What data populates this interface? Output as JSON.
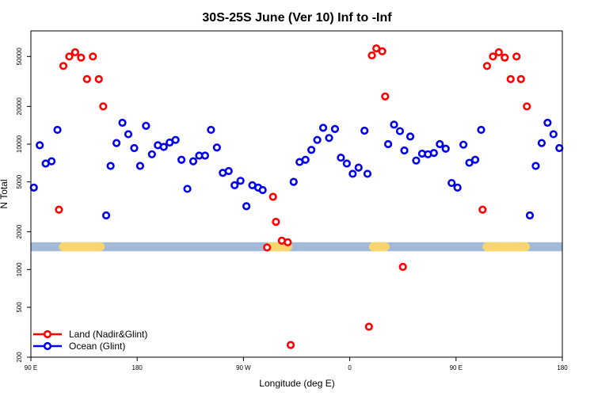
{
  "chart_data": {
    "type": "scatter",
    "title": "30S-25S June (Ver 10)   Inf to -Inf",
    "xlabel": "Longitude (deg E)",
    "ylabel": "N Total",
    "y_scale": "log",
    "xlim": [
      0,
      360
    ],
    "ylim": [
      200,
      80000
    ],
    "x_ticks": [
      {
        "value": 0,
        "label": "90 E"
      },
      {
        "value": 72,
        "label": "180"
      },
      {
        "value": 144,
        "label": "90 W"
      },
      {
        "value": 216,
        "label": "0"
      },
      {
        "value": 288,
        "label": "90 E"
      },
      {
        "value": 360,
        "label": "180"
      }
    ],
    "y_ticks": [
      {
        "value": 200,
        "label": "200"
      },
      {
        "value": 500,
        "label": "500"
      },
      {
        "value": 1000,
        "label": "1000"
      },
      {
        "value": 2000,
        "label": "2000"
      },
      {
        "value": 5000,
        "label": "5000"
      },
      {
        "value": 10000,
        "label": "10000"
      },
      {
        "value": 20000,
        "label": "20000"
      },
      {
        "value": 50000,
        "label": "50000"
      }
    ],
    "reference_band": {
      "y_range": [
        1400,
        1650
      ],
      "color": "#a3b9d8",
      "land_color": "#f8d56e",
      "land_segments": [
        [
          19,
          50
        ],
        [
          159,
          177
        ],
        [
          229,
          243
        ],
        [
          306,
          338
        ]
      ]
    },
    "legend": {
      "position": "bottom-left"
    },
    "series": [
      {
        "name": "Land (Nadir&Glint)",
        "color": "#ff0000",
        "points": [
          [
            19,
            3000
          ],
          [
            22,
            42000
          ],
          [
            26,
            50000
          ],
          [
            30,
            54000
          ],
          [
            34,
            49000
          ],
          [
            38,
            33000
          ],
          [
            42,
            50000
          ],
          [
            46,
            33000
          ],
          [
            49,
            20000
          ],
          [
            160,
            1500
          ],
          [
            164,
            3800
          ],
          [
            166,
            2400
          ],
          [
            170,
            1700
          ],
          [
            174,
            1650
          ],
          [
            176,
            250
          ],
          [
            229,
            350
          ],
          [
            231,
            51000
          ],
          [
            234,
            58000
          ],
          [
            238,
            55000
          ],
          [
            240,
            24000
          ],
          [
            252,
            1050
          ],
          [
            306,
            3000
          ],
          [
            309,
            42000
          ],
          [
            313,
            50000
          ],
          [
            317,
            54000
          ],
          [
            321,
            49000
          ],
          [
            325,
            33000
          ],
          [
            329,
            50000
          ],
          [
            332,
            33000
          ],
          [
            336,
            20000
          ]
        ]
      },
      {
        "name": "Ocean (Glint)",
        "color": "#0000ee",
        "points": [
          [
            2,
            4500
          ],
          [
            6,
            9800
          ],
          [
            10,
            7000
          ],
          [
            14,
            7300
          ],
          [
            18,
            13000
          ],
          [
            51,
            2700
          ],
          [
            54,
            6700
          ],
          [
            58,
            10200
          ],
          [
            62,
            14800
          ],
          [
            66,
            12000
          ],
          [
            70,
            9300
          ],
          [
            74,
            6700
          ],
          [
            78,
            14000
          ],
          [
            82,
            8300
          ],
          [
            86,
            9800
          ],
          [
            90,
            9500
          ],
          [
            94,
            10300
          ],
          [
            98,
            10800
          ],
          [
            102,
            7500
          ],
          [
            106,
            4400
          ],
          [
            110,
            7300
          ],
          [
            114,
            8100
          ],
          [
            118,
            8100
          ],
          [
            122,
            13000
          ],
          [
            126,
            9400
          ],
          [
            130,
            5900
          ],
          [
            134,
            6100
          ],
          [
            138,
            4700
          ],
          [
            142,
            5100
          ],
          [
            146,
            3200
          ],
          [
            150,
            4700
          ],
          [
            154,
            4500
          ],
          [
            157,
            4300
          ],
          [
            178,
            5000
          ],
          [
            182,
            7200
          ],
          [
            186,
            7500
          ],
          [
            190,
            9000
          ],
          [
            194,
            10800
          ],
          [
            198,
            13500
          ],
          [
            202,
            11200
          ],
          [
            206,
            13200
          ],
          [
            210,
            7800
          ],
          [
            214,
            7000
          ],
          [
            218,
            5800
          ],
          [
            222,
            6500
          ],
          [
            226,
            12800
          ],
          [
            228,
            5800
          ],
          [
            242,
            10000
          ],
          [
            246,
            14300
          ],
          [
            250,
            12700
          ],
          [
            253,
            8900
          ],
          [
            257,
            11500
          ],
          [
            261,
            7400
          ],
          [
            265,
            8400
          ],
          [
            269,
            8300
          ],
          [
            273,
            8500
          ],
          [
            277,
            10000
          ],
          [
            281,
            9200
          ],
          [
            285,
            4900
          ],
          [
            289,
            4500
          ],
          [
            293,
            9900
          ],
          [
            297,
            7100
          ],
          [
            301,
            7500
          ],
          [
            305,
            13000
          ],
          [
            338,
            2700
          ],
          [
            342,
            6700
          ],
          [
            346,
            10200
          ],
          [
            350,
            14800
          ],
          [
            354,
            12000
          ],
          [
            358,
            9300
          ]
        ]
      }
    ]
  }
}
